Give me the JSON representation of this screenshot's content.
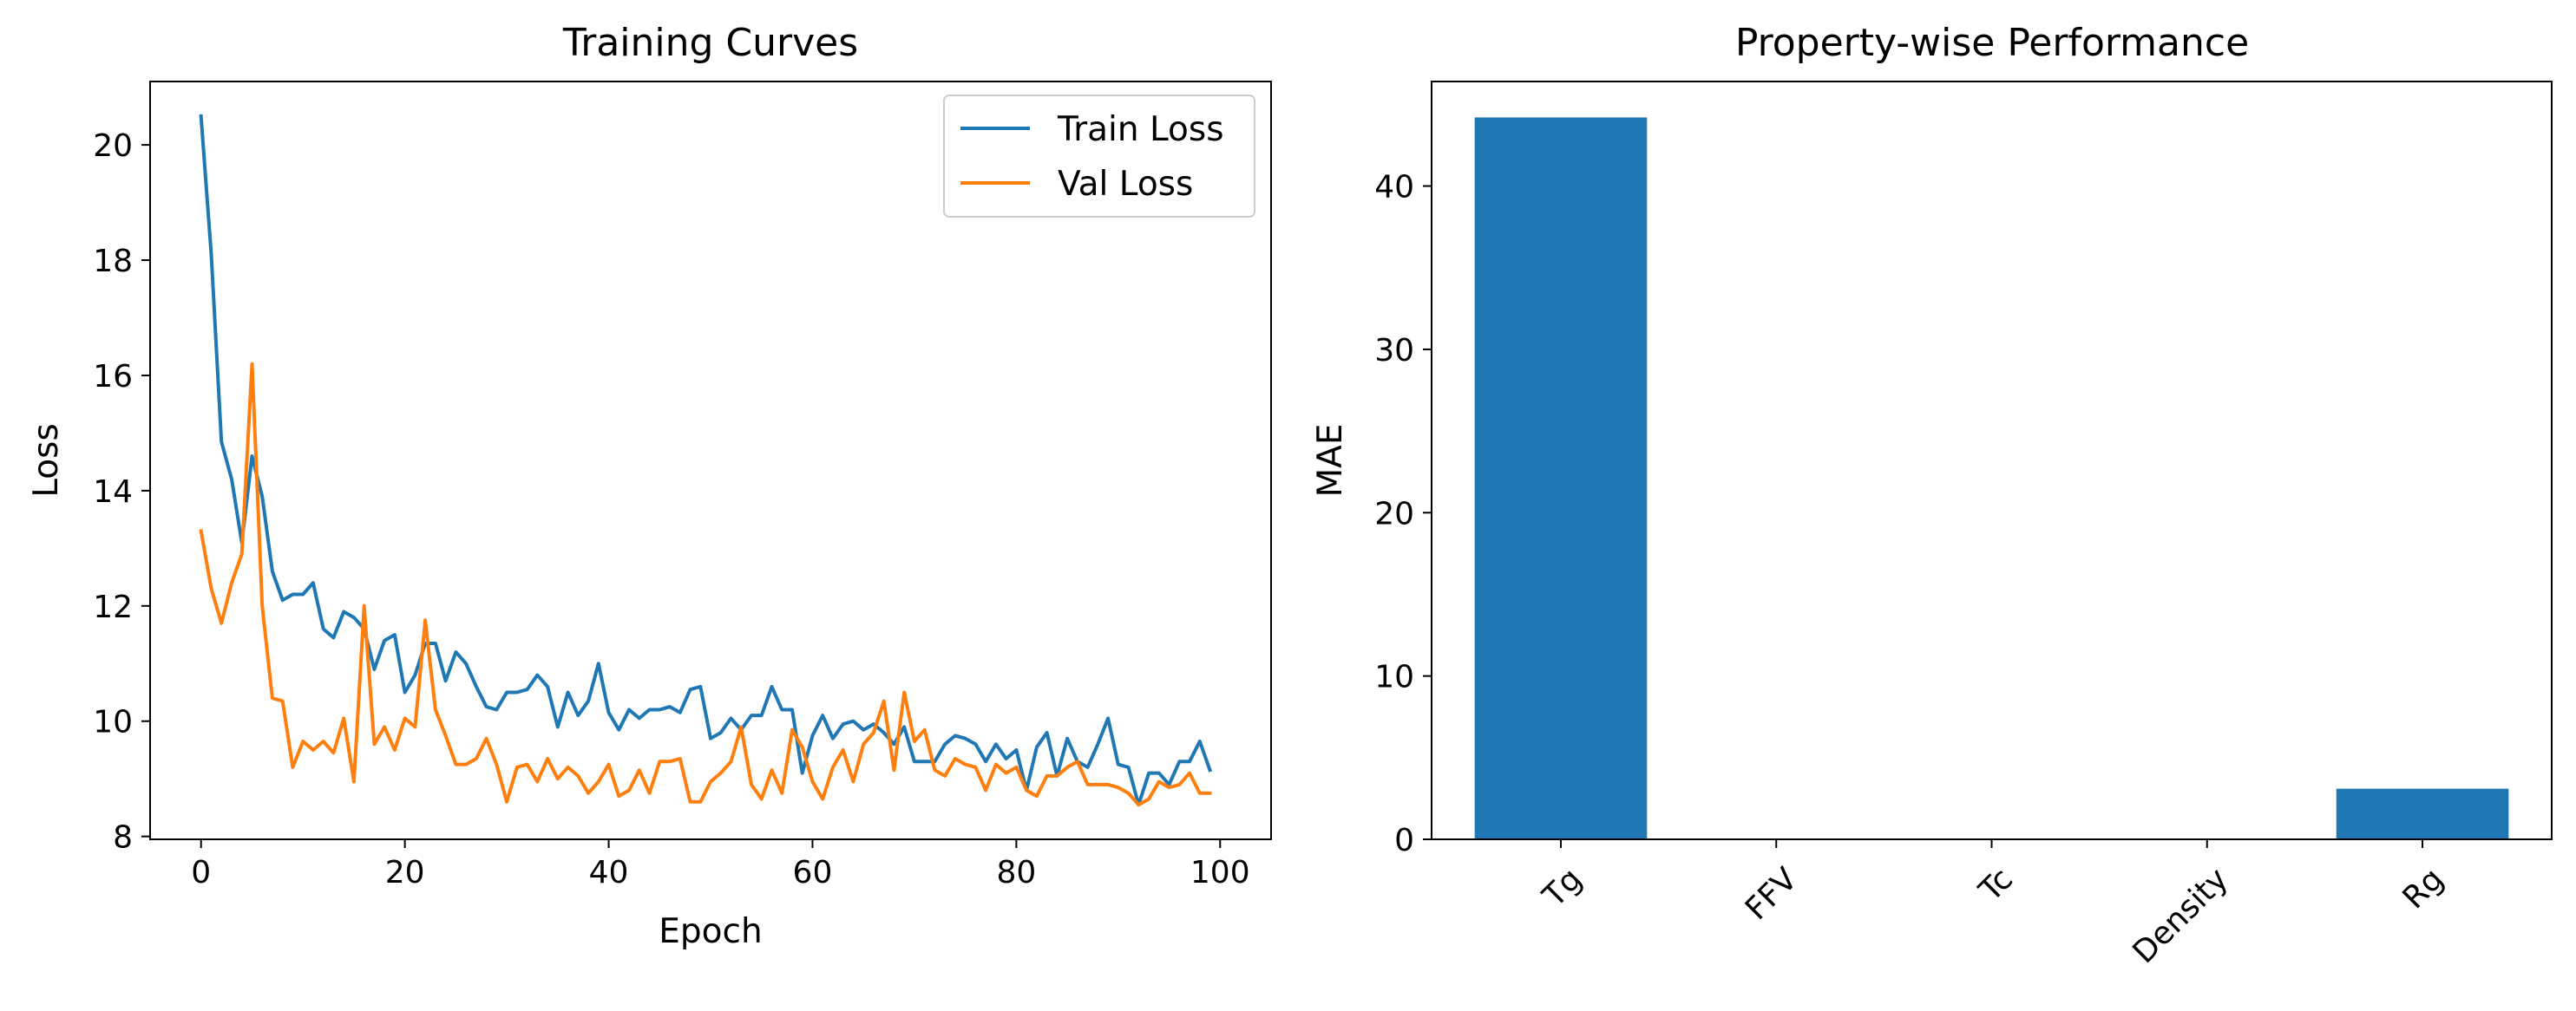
{
  "chart_data": [
    {
      "type": "line",
      "title": "Training Curves",
      "xlabel": "Epoch",
      "ylabel": "Loss",
      "xlim": [
        -5,
        105
      ],
      "ylim": [
        7.95,
        21.1
      ],
      "xticks": [
        0,
        20,
        40,
        60,
        80,
        100
      ],
      "yticks": [
        8,
        10,
        12,
        14,
        16,
        18,
        20
      ],
      "grid": false,
      "legend": "top-right",
      "x": [
        0,
        1,
        2,
        3,
        4,
        5,
        6,
        7,
        8,
        9,
        10,
        11,
        12,
        13,
        14,
        15,
        16,
        17,
        18,
        19,
        20,
        21,
        22,
        23,
        24,
        25,
        26,
        27,
        28,
        29,
        30,
        31,
        32,
        33,
        34,
        35,
        36,
        37,
        38,
        39,
        40,
        41,
        42,
        43,
        44,
        45,
        46,
        47,
        48,
        49,
        50,
        51,
        52,
        53,
        54,
        55,
        56,
        57,
        58,
        59,
        60,
        61,
        62,
        63,
        64,
        65,
        66,
        67,
        68,
        69,
        70,
        71,
        72,
        73,
        74,
        75,
        76,
        77,
        78,
        79,
        80,
        81,
        82,
        83,
        84,
        85,
        86,
        87,
        88,
        89,
        90,
        91,
        92,
        93,
        94,
        95,
        96,
        97,
        98,
        99
      ],
      "series": [
        {
          "name": "Train Loss",
          "color": "#1f77b4",
          "values": [
            20.5,
            18.1,
            14.85,
            14.2,
            13.1,
            14.6,
            13.9,
            12.6,
            12.1,
            12.2,
            12.2,
            12.4,
            11.6,
            11.45,
            11.9,
            11.8,
            11.6,
            10.9,
            11.4,
            11.5,
            10.5,
            10.8,
            11.35,
            11.35,
            10.7,
            11.2,
            11.0,
            10.6,
            10.25,
            10.2,
            10.5,
            10.5,
            10.55,
            10.8,
            10.6,
            9.9,
            10.5,
            10.1,
            10.35,
            11.0,
            10.15,
            9.85,
            10.2,
            10.05,
            10.2,
            10.2,
            10.25,
            10.15,
            10.55,
            10.6,
            9.7,
            9.8,
            10.05,
            9.85,
            10.1,
            10.1,
            10.6,
            10.2,
            10.2,
            9.1,
            9.75,
            10.1,
            9.7,
            9.95,
            10.0,
            9.85,
            9.95,
            9.8,
            9.6,
            9.9,
            9.3,
            9.3,
            9.3,
            9.6,
            9.75,
            9.7,
            9.6,
            9.3,
            9.6,
            9.35,
            9.5,
            8.8,
            9.55,
            9.8,
            9.05,
            9.7,
            9.3,
            9.2,
            9.6,
            10.05,
            9.25,
            9.2,
            8.55,
            9.1,
            9.1,
            8.9,
            9.3,
            9.3,
            9.65,
            9.15
          ]
        },
        {
          "name": "Val Loss",
          "color": "#ff7f0e",
          "values": [
            13.3,
            12.3,
            11.7,
            12.4,
            12.9,
            16.2,
            12.0,
            10.4,
            10.35,
            9.2,
            9.65,
            9.5,
            9.65,
            9.45,
            10.05,
            8.95,
            12.0,
            9.6,
            9.9,
            9.5,
            10.05,
            9.9,
            11.75,
            10.2,
            9.75,
            9.25,
            9.25,
            9.35,
            9.7,
            9.25,
            8.6,
            9.2,
            9.25,
            8.95,
            9.35,
            9.0,
            9.2,
            9.05,
            8.75,
            8.95,
            9.25,
            8.7,
            8.8,
            9.15,
            8.75,
            9.3,
            9.3,
            9.35,
            8.6,
            8.6,
            8.95,
            9.1,
            9.3,
            9.9,
            8.9,
            8.65,
            9.15,
            8.75,
            9.85,
            9.55,
            8.95,
            8.65,
            9.2,
            9.5,
            8.95,
            9.6,
            9.8,
            10.35,
            9.15,
            10.5,
            9.65,
            9.85,
            9.15,
            9.05,
            9.35,
            9.25,
            9.2,
            8.8,
            9.25,
            9.1,
            9.2,
            8.8,
            8.7,
            9.05,
            9.05,
            9.2,
            9.3,
            8.9,
            8.9,
            8.9,
            8.85,
            8.75,
            8.55,
            8.65,
            8.95,
            8.85,
            8.9,
            9.1,
            8.75,
            8.75
          ]
        }
      ]
    },
    {
      "type": "bar",
      "title": "Property-wise Performance",
      "xlabel": "",
      "ylabel": "MAE",
      "ylim": [
        0,
        46.4
      ],
      "yticks": [
        0,
        10,
        20,
        30,
        40
      ],
      "grid": false,
      "color": "#1f77b4",
      "categories": [
        "Tg",
        "FFV",
        "Tc",
        "Density",
        "Rg"
      ],
      "values": [
        44.2,
        0.01,
        0.03,
        0.05,
        3.1
      ]
    }
  ]
}
